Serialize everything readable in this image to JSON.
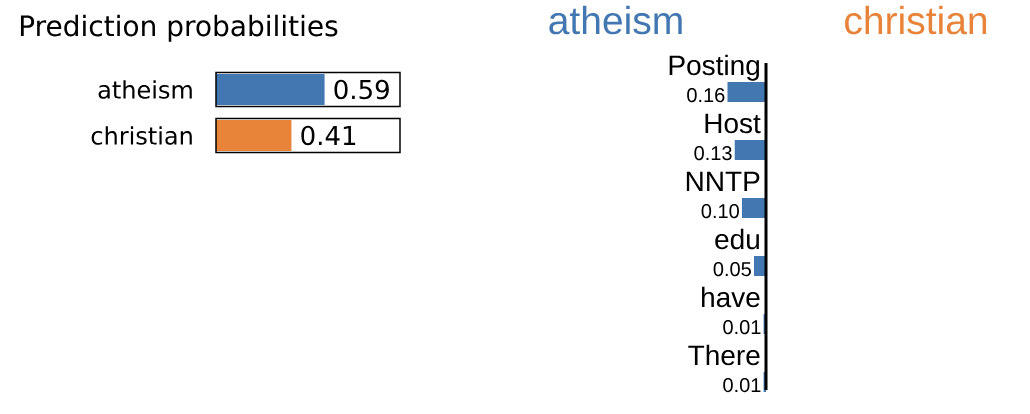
{
  "chart_data": [
    {
      "type": "bar",
      "title": "Prediction probabilities",
      "orientation": "horizontal",
      "categories": [
        "atheism",
        "christian"
      ],
      "values": [
        0.59,
        0.41
      ],
      "colors": [
        "#4277b2",
        "#e8833a"
      ],
      "xlim": [
        0,
        1
      ],
      "data_labels": true,
      "tick_labels": "y"
    },
    {
      "type": "bar",
      "orientation": "horizontal",
      "categories": [
        "Posting",
        "Host",
        "NNTP",
        "edu",
        "have",
        "There"
      ],
      "series": [
        {
          "name": "atheism",
          "color": "#4277b2",
          "values": [
            0.16,
            0.13,
            0.1,
            0.05,
            0.01,
            0.01
          ],
          "value_labels": [
            "0.16",
            "0.13",
            "0.10",
            "0.05",
            "0.01",
            "0.01"
          ]
        },
        {
          "name": "christian",
          "color": "#e8833a",
          "values": [
            null,
            null,
            null,
            null,
            null,
            null
          ]
        }
      ],
      "tick_labels": "y"
    }
  ]
}
